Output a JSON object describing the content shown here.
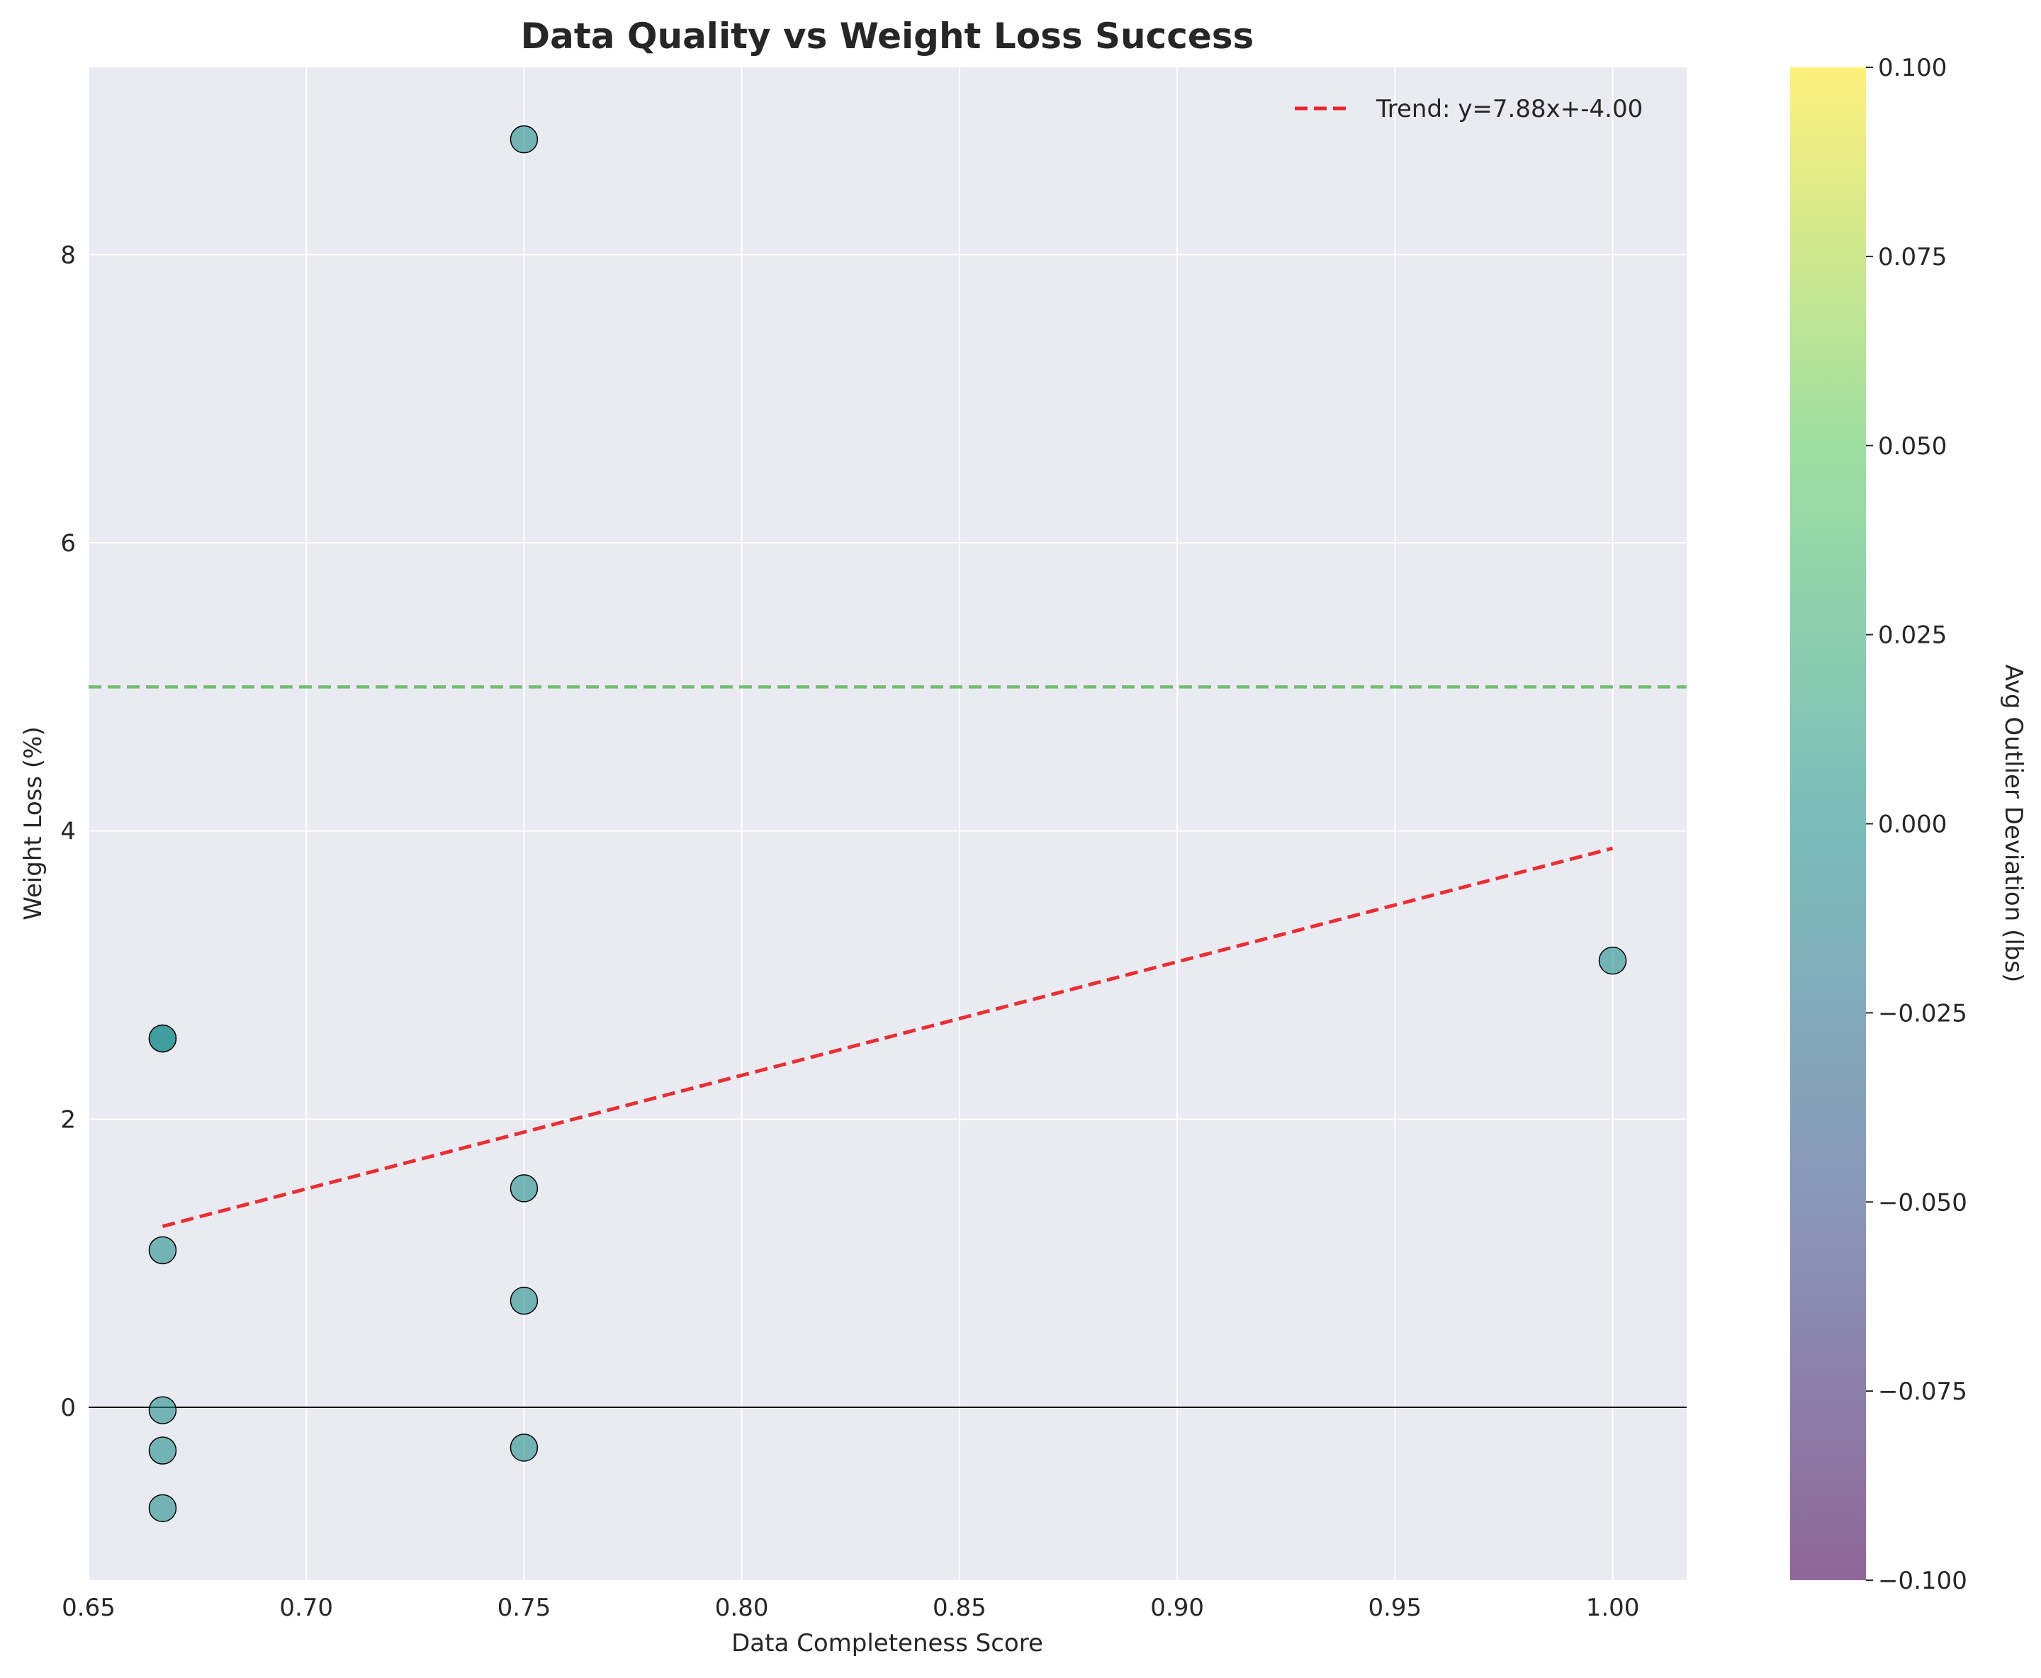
{
  "chart_data": {
    "type": "scatter",
    "title": "Data Quality vs Weight Loss Success",
    "xlabel": "Data Completeness Score",
    "ylabel": "Weight Loss (%)",
    "xlim": [
      0.65,
      1.017
    ],
    "ylim": [
      -1.2,
      9.3
    ],
    "x_ticks": [
      "0.65",
      "0.70",
      "0.75",
      "0.80",
      "0.85",
      "0.90",
      "0.95",
      "1.00"
    ],
    "y_ticks": [
      "0",
      "2",
      "4",
      "6",
      "8"
    ],
    "grid": true,
    "points": [
      {
        "x": 0.75,
        "y": 8.8
      },
      {
        "x": 0.667,
        "y": 2.56
      },
      {
        "x": 0.667,
        "y": 2.56
      },
      {
        "x": 0.667,
        "y": 1.09
      },
      {
        "x": 0.667,
        "y": -0.02
      },
      {
        "x": 0.667,
        "y": -0.3
      },
      {
        "x": 0.667,
        "y": -0.7
      },
      {
        "x": 0.75,
        "y": 1.52
      },
      {
        "x": 0.75,
        "y": 0.74
      },
      {
        "x": 0.75,
        "y": -0.28
      },
      {
        "x": 1.0,
        "y": 3.1
      }
    ],
    "point_color": "#21908d",
    "trend": {
      "label": "Trend: y=7.88x+-4.00",
      "slope": 7.88,
      "intercept": -4.0,
      "x_range": [
        0.667,
        1.0
      ],
      "color": "#e8262a"
    },
    "reference_line": {
      "y": 5,
      "color": "#4daf4a"
    },
    "zero_line": {
      "y": 0,
      "color": "#000000"
    },
    "legend_position": "top-right",
    "colorbar": {
      "label": "Avg Outlier Deviation (lbs)",
      "range": [
        -0.1,
        0.1
      ],
      "ticks": [
        "0.100",
        "0.075",
        "0.050",
        "0.025",
        "0.000",
        "−0.025",
        "−0.050",
        "−0.075",
        "−0.100"
      ],
      "colors": [
        "#440154",
        "#3b528b",
        "#21908d",
        "#5dc962",
        "#fde725"
      ]
    }
  }
}
